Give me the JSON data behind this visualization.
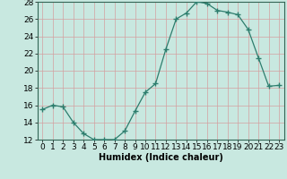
{
  "x": [
    0,
    1,
    2,
    3,
    4,
    5,
    6,
    7,
    8,
    9,
    10,
    11,
    12,
    13,
    14,
    15,
    16,
    17,
    18,
    19,
    20,
    21,
    22,
    23
  ],
  "y": [
    15.5,
    16.0,
    15.8,
    14.0,
    12.7,
    12.0,
    12.0,
    12.0,
    13.0,
    15.3,
    17.5,
    18.5,
    22.5,
    26.0,
    26.7,
    28.0,
    27.8,
    27.0,
    26.8,
    26.5,
    24.8,
    21.5,
    18.2,
    18.3
  ],
  "line_color": "#2d7d6d",
  "marker_color": "#2d7d6d",
  "bg_color": "#c8e8e0",
  "grid_color": "#d4a0a0",
  "xlabel": "Humidex (Indice chaleur)",
  "ylim": [
    12,
    28
  ],
  "xlim_min": -0.5,
  "xlim_max": 23.5,
  "yticks": [
    12,
    14,
    16,
    18,
    20,
    22,
    24,
    26,
    28
  ],
  "xlabel_fontsize": 7,
  "tick_fontsize": 6.5
}
